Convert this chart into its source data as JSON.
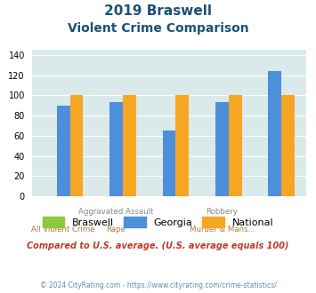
{
  "title_line1": "2019 Braswell",
  "title_line2": "Violent Crime Comparison",
  "braswell": [
    0,
    0,
    0,
    0,
    0
  ],
  "georgia": [
    90,
    93,
    65,
    93,
    124
  ],
  "national": [
    100,
    100,
    100,
    100,
    100
  ],
  "bar_color_braswell": "#8dc63f",
  "bar_color_georgia": "#4d8fda",
  "bar_color_national": "#f5a623",
  "bg_color": "#daeaea",
  "ylim": [
    0,
    145
  ],
  "yticks": [
    0,
    20,
    40,
    60,
    80,
    100,
    120,
    140
  ],
  "top_labels": [
    "",
    "Aggravated Assault",
    "",
    "Robbery",
    ""
  ],
  "bottom_labels": [
    "All Violent Crime",
    "Rape",
    "",
    "Murder & Mans...",
    ""
  ],
  "top_label_color": "#888888",
  "bottom_label_color": "#b07840",
  "subtitle_text": "Compared to U.S. average. (U.S. average equals 100)",
  "footer_text": "© 2024 CityRating.com - https://www.cityrating.com/crime-statistics/",
  "title_color": "#1a5276",
  "subtitle_color": "#c0392b",
  "footer_color": "#5b8fa8",
  "legend_labels": [
    "Braswell",
    "Georgia",
    "National"
  ]
}
